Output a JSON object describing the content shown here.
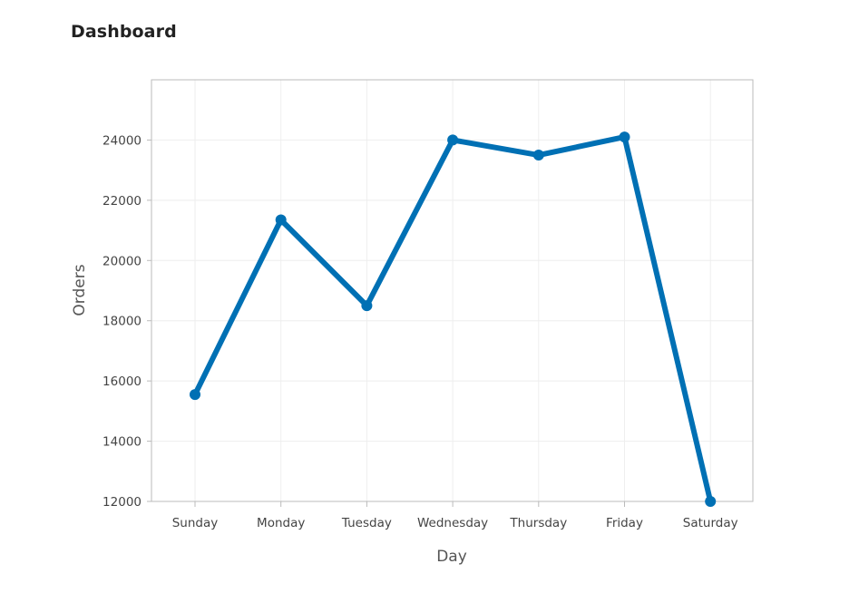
{
  "page": {
    "title": "Dashboard"
  },
  "chart_data": {
    "type": "line",
    "title": "",
    "xlabel": "Day",
    "ylabel": "Orders",
    "categories": [
      "Sunday",
      "Monday",
      "Tuesday",
      "Wednesday",
      "Thursday",
      "Friday",
      "Saturday"
    ],
    "series": [
      {
        "values": [
          15550,
          21350,
          18500,
          24000,
          23500,
          24100,
          12000
        ]
      }
    ],
    "ylim": [
      12000,
      26000
    ],
    "yticks": [
      12000,
      14000,
      16000,
      18000,
      20000,
      22000,
      24000
    ],
    "grid": true,
    "legend": "none",
    "colors": {
      "line": "#0070b4",
      "grid": "#eeeeee",
      "frame": "#bbbbbb",
      "tick_text": "#444444",
      "axis_label": "#555555"
    }
  }
}
